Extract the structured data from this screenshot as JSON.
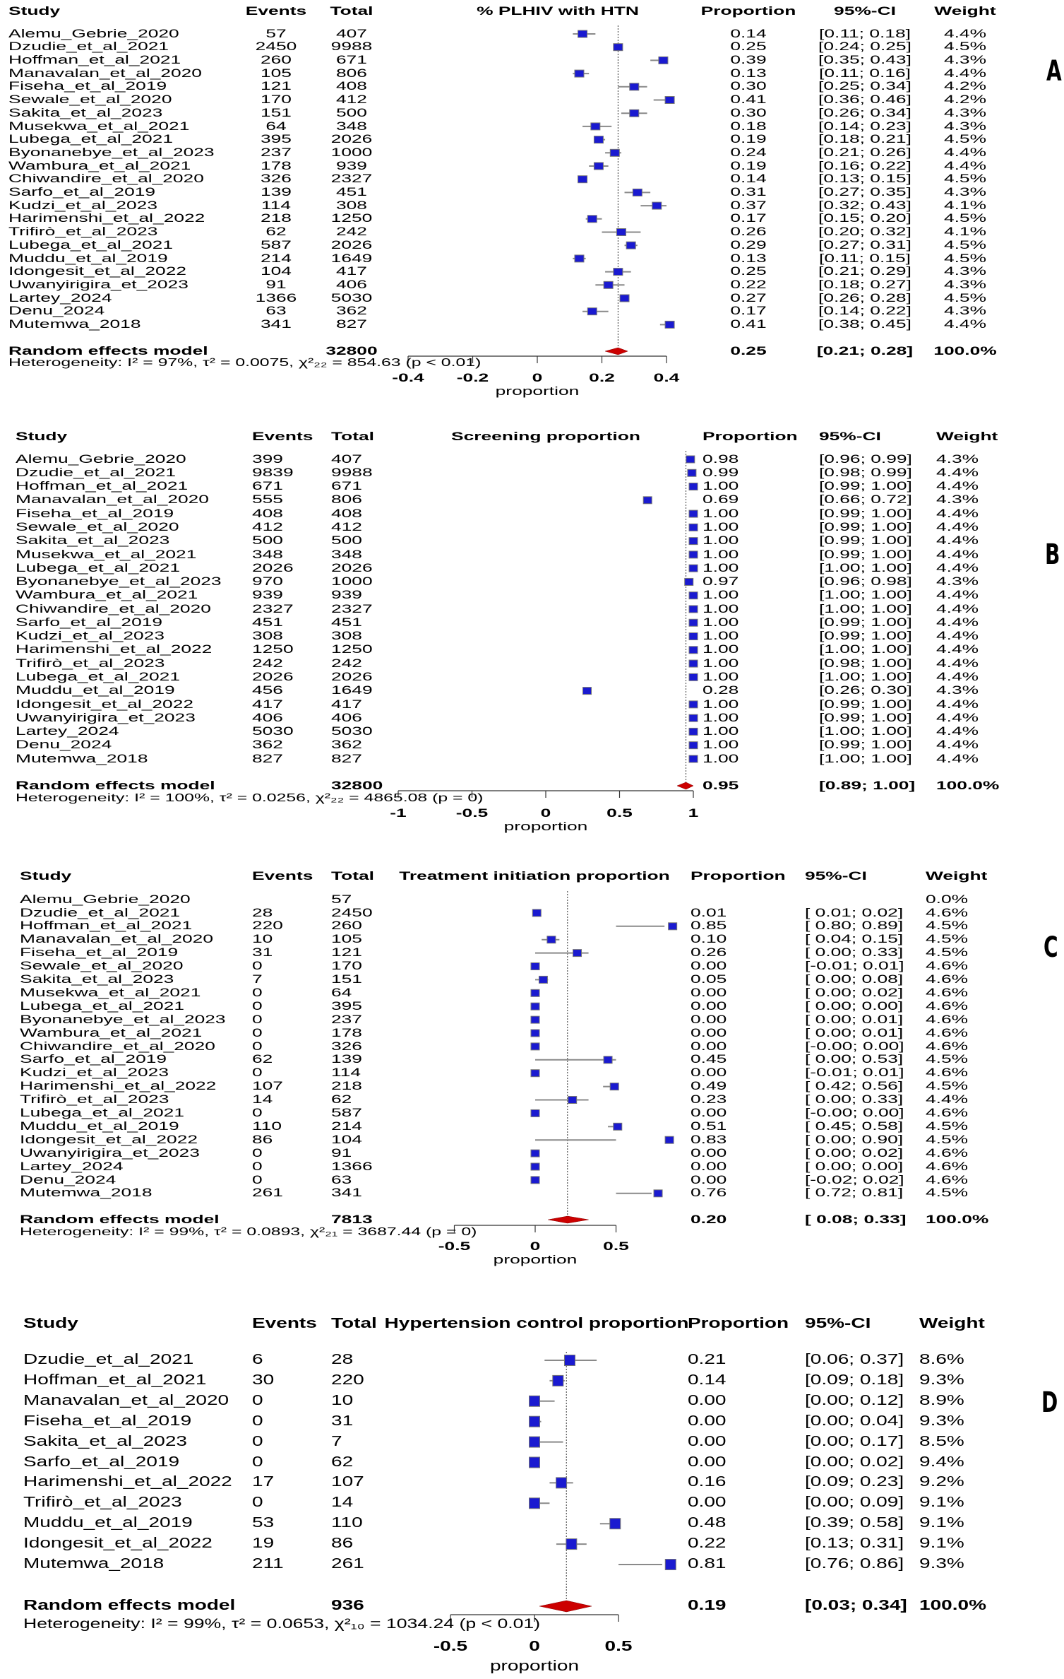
{
  "colors": {
    "square": "#1a1ad0",
    "ci_line": "#8a8a8a",
    "diamond": "#cc0000",
    "reference_line": "#333333"
  },
  "panel_labels": [
    "A",
    "B",
    "C",
    "D"
  ],
  "chart_data": [
    {
      "type": "forest",
      "headers": {
        "study": "Study",
        "events": "Events",
        "total": "Total",
        "plot": "% PLHIV with HTN",
        "proportion": "Proportion",
        "ci": "95%-CI",
        "weight": "Weight"
      },
      "studies": [
        {
          "study": "Alemu_Gebrie_2020",
          "events": "57",
          "total": "407",
          "proportion": "0.14",
          "ci": "[0.11; 0.18]",
          "weight": "4.4%"
        },
        {
          "study": "Dzudie_et_al_2021",
          "events": "2450",
          "total": "9988",
          "proportion": "0.25",
          "ci": "[0.24; 0.25]",
          "weight": "4.5%"
        },
        {
          "study": "Hoffman_et_al_2021",
          "events": "260",
          "total": "671",
          "proportion": "0.39",
          "ci": "[0.35; 0.43]",
          "weight": "4.3%"
        },
        {
          "study": "Manavalan_et_al_2020",
          "events": "105",
          "total": "806",
          "proportion": "0.13",
          "ci": "[0.11; 0.16]",
          "weight": "4.4%"
        },
        {
          "study": "Fiseha_et_al_2019",
          "events": "121",
          "total": "408",
          "proportion": "0.30",
          "ci": "[0.25; 0.34]",
          "weight": "4.2%"
        },
        {
          "study": "Sewale_et_al_2020",
          "events": "170",
          "total": "412",
          "proportion": "0.41",
          "ci": "[0.36; 0.46]",
          "weight": "4.2%"
        },
        {
          "study": "Sakita_et_al_2023",
          "events": "151",
          "total": "500",
          "proportion": "0.30",
          "ci": "[0.26; 0.34]",
          "weight": "4.3%"
        },
        {
          "study": "Musekwa_et_al_2021",
          "events": "64",
          "total": "348",
          "proportion": "0.18",
          "ci": "[0.14; 0.23]",
          "weight": "4.3%"
        },
        {
          "study": "Lubega_et_al_2021",
          "events": "395",
          "total": "2026",
          "proportion": "0.19",
          "ci": "[0.18; 0.21]",
          "weight": "4.5%"
        },
        {
          "study": "Byonanebye_et_al_2023",
          "events": "237",
          "total": "1000",
          "proportion": "0.24",
          "ci": "[0.21; 0.26]",
          "weight": "4.4%"
        },
        {
          "study": "Wambura_et_al_2021",
          "events": "178",
          "total": "939",
          "proportion": "0.19",
          "ci": "[0.16; 0.22]",
          "weight": "4.4%"
        },
        {
          "study": "Chiwandire_et_al_2020",
          "events": "326",
          "total": "2327",
          "proportion": "0.14",
          "ci": "[0.13; 0.15]",
          "weight": "4.5%"
        },
        {
          "study": "Sarfo_et_al_2019",
          "events": "139",
          "total": "451",
          "proportion": "0.31",
          "ci": "[0.27; 0.35]",
          "weight": "4.3%"
        },
        {
          "study": "Kudzi_et_al_2023",
          "events": "114",
          "total": "308",
          "proportion": "0.37",
          "ci": "[0.32; 0.43]",
          "weight": "4.1%"
        },
        {
          "study": "Harimenshi_et_al_2022",
          "events": "218",
          "total": "1250",
          "proportion": "0.17",
          "ci": "[0.15; 0.20]",
          "weight": "4.5%"
        },
        {
          "study": "Trifirò_et_al_2023",
          "events": "62",
          "total": "242",
          "proportion": "0.26",
          "ci": "[0.20; 0.32]",
          "weight": "4.1%"
        },
        {
          "study": "Lubega_et_al_2021",
          "events": "587",
          "total": "2026",
          "proportion": "0.29",
          "ci": "[0.27; 0.31]",
          "weight": "4.5%"
        },
        {
          "study": "Muddu_et_al_2019",
          "events": "214",
          "total": "1649",
          "proportion": "0.13",
          "ci": "[0.11; 0.15]",
          "weight": "4.5%"
        },
        {
          "study": "Idongesit_et_al_2022",
          "events": "104",
          "total": "417",
          "proportion": "0.25",
          "ci": "[0.21; 0.29]",
          "weight": "4.3%"
        },
        {
          "study": "Uwanyirigira_et_2023",
          "events": "91",
          "total": "406",
          "proportion": "0.22",
          "ci": "[0.18; 0.27]",
          "weight": "4.3%"
        },
        {
          "study": "Lartey_2024",
          "events": "1366",
          "total": "5030",
          "proportion": "0.27",
          "ci": "[0.26; 0.28]",
          "weight": "4.5%"
        },
        {
          "study": "Denu_2024",
          "events": "63",
          "total": "362",
          "proportion": "0.17",
          "ci": "[0.14; 0.22]",
          "weight": "4.3%"
        },
        {
          "study": "Mutemwa_2018",
          "events": "341",
          "total": "827",
          "proportion": "0.41",
          "ci": "[0.38; 0.45]",
          "weight": "4.4%"
        }
      ],
      "pooled": {
        "label": "Random effects model",
        "total": "32800",
        "proportion": "0.25",
        "ci": "[0.21; 0.28]",
        "weight": "100.0%"
      },
      "heterogeneity": "Heterogeneity: I² = 97%, τ² = 0.0075, χ²₂₂ = 854.63 (p < 0.01)",
      "xlabel": "proportion",
      "xticks": [
        "-0.4",
        "-0.2",
        "0",
        "0.2",
        "0.4"
      ],
      "xlim": [
        -0.4,
        0.4
      ],
      "reference_line": 0.25
    },
    {
      "type": "forest",
      "headers": {
        "study": "Study",
        "events": "Events",
        "total": "Total",
        "plot": "Screening proportion",
        "proportion": "Proportion",
        "ci": "95%-CI",
        "weight": "Weight"
      },
      "studies": [
        {
          "study": "Alemu_Gebrie_2020",
          "events": "399",
          "total": "407",
          "proportion": "0.98",
          "ci": "[0.96; 0.99]",
          "weight": "4.3%"
        },
        {
          "study": "Dzudie_et_al_2021",
          "events": "9839",
          "total": "9988",
          "proportion": "0.99",
          "ci": "[0.98; 0.99]",
          "weight": "4.4%"
        },
        {
          "study": "Hoffman_et_al_2021",
          "events": "671",
          "total": "671",
          "proportion": "1.00",
          "ci": "[0.99; 1.00]",
          "weight": "4.4%"
        },
        {
          "study": "Manavalan_et_al_2020",
          "events": "555",
          "total": "806",
          "proportion": "0.69",
          "ci": "[0.66; 0.72]",
          "weight": "4.3%"
        },
        {
          "study": "Fiseha_et_al_2019",
          "events": "408",
          "total": "408",
          "proportion": "1.00",
          "ci": "[0.99; 1.00]",
          "weight": "4.4%"
        },
        {
          "study": "Sewale_et_al_2020",
          "events": "412",
          "total": "412",
          "proportion": "1.00",
          "ci": "[0.99; 1.00]",
          "weight": "4.4%"
        },
        {
          "study": "Sakita_et_al_2023",
          "events": "500",
          "total": "500",
          "proportion": "1.00",
          "ci": "[0.99; 1.00]",
          "weight": "4.4%"
        },
        {
          "study": "Musekwa_et_al_2021",
          "events": "348",
          "total": "348",
          "proportion": "1.00",
          "ci": "[0.99; 1.00]",
          "weight": "4.4%"
        },
        {
          "study": "Lubega_et_al_2021",
          "events": "2026",
          "total": "2026",
          "proportion": "1.00",
          "ci": "[1.00; 1.00]",
          "weight": "4.4%"
        },
        {
          "study": "Byonanebye_et_al_2023",
          "events": "970",
          "total": "1000",
          "proportion": "0.97",
          "ci": "[0.96; 0.98]",
          "weight": "4.3%"
        },
        {
          "study": "Wambura_et_al_2021",
          "events": "939",
          "total": "939",
          "proportion": "1.00",
          "ci": "[1.00; 1.00]",
          "weight": "4.4%"
        },
        {
          "study": "Chiwandire_et_al_2020",
          "events": "2327",
          "total": "2327",
          "proportion": "1.00",
          "ci": "[1.00; 1.00]",
          "weight": "4.4%"
        },
        {
          "study": "Sarfo_et_al_2019",
          "events": "451",
          "total": "451",
          "proportion": "1.00",
          "ci": "[0.99; 1.00]",
          "weight": "4.4%"
        },
        {
          "study": "Kudzi_et_al_2023",
          "events": "308",
          "total": "308",
          "proportion": "1.00",
          "ci": "[0.99; 1.00]",
          "weight": "4.4%"
        },
        {
          "study": "Harimenshi_et_al_2022",
          "events": "1250",
          "total": "1250",
          "proportion": "1.00",
          "ci": "[1.00; 1.00]",
          "weight": "4.4%"
        },
        {
          "study": "Trifirò_et_al_2023",
          "events": "242",
          "total": "242",
          "proportion": "1.00",
          "ci": "[0.98; 1.00]",
          "weight": "4.4%"
        },
        {
          "study": "Lubega_et_al_2021",
          "events": "2026",
          "total": "2026",
          "proportion": "1.00",
          "ci": "[1.00; 1.00]",
          "weight": "4.4%"
        },
        {
          "study": "Muddu_et_al_2019",
          "events": "456",
          "total": "1649",
          "proportion": "0.28",
          "ci": "[0.26; 0.30]",
          "weight": "4.3%"
        },
        {
          "study": "Idongesit_et_al_2022",
          "events": "417",
          "total": "417",
          "proportion": "1.00",
          "ci": "[0.99; 1.00]",
          "weight": "4.4%"
        },
        {
          "study": "Uwanyirigira_et_2023",
          "events": "406",
          "total": "406",
          "proportion": "1.00",
          "ci": "[0.99; 1.00]",
          "weight": "4.4%"
        },
        {
          "study": "Lartey_2024",
          "events": "5030",
          "total": "5030",
          "proportion": "1.00",
          "ci": "[1.00; 1.00]",
          "weight": "4.4%"
        },
        {
          "study": "Denu_2024",
          "events": "362",
          "total": "362",
          "proportion": "1.00",
          "ci": "[0.99; 1.00]",
          "weight": "4.4%"
        },
        {
          "study": "Mutemwa_2018",
          "events": "827",
          "total": "827",
          "proportion": "1.00",
          "ci": "[1.00; 1.00]",
          "weight": "4.4%"
        }
      ],
      "pooled": {
        "label": "Random effects model",
        "total": "32800",
        "proportion": "0.95",
        "ci": "[0.89; 1.00]",
        "weight": "100.0%"
      },
      "heterogeneity": "Heterogeneity: I² = 100%, τ² = 0.0256, χ²₂₂ = 4865.08 (p = 0)",
      "xlabel": "proportion",
      "xticks": [
        "-1",
        "-0.5",
        "0",
        "0.5",
        "1"
      ],
      "xlim": [
        -1,
        1
      ],
      "reference_line": 0.95
    },
    {
      "type": "forest",
      "headers": {
        "study": "Study",
        "events": "Events",
        "total": "Total",
        "plot": "Treatment initiation proportion",
        "proportion": "Proportion",
        "ci": "95%-CI",
        "weight": "Weight"
      },
      "studies": [
        {
          "study": "Alemu_Gebrie_2020",
          "events": "",
          "total": "57",
          "proportion": "",
          "ci": "",
          "weight": "0.0%"
        },
        {
          "study": "Dzudie_et_al_2021",
          "events": "28",
          "total": "2450",
          "proportion": "0.01",
          "ci": "[ 0.01; 0.02]",
          "weight": "4.6%"
        },
        {
          "study": "Hoffman_et_al_2021",
          "events": "220",
          "total": "260",
          "proportion": "0.85",
          "ci": "[ 0.80; 0.89]",
          "weight": "4.5%"
        },
        {
          "study": "Manavalan_et_al_2020",
          "events": "10",
          "total": "105",
          "proportion": "0.10",
          "ci": "[ 0.04; 0.15]",
          "weight": "4.5%"
        },
        {
          "study": "Fiseha_et_al_2019",
          "events": "31",
          "total": "121",
          "proportion": "0.26",
          "ci": "[ 0.00; 0.33]",
          "weight": "4.5%"
        },
        {
          "study": "Sewale_et_al_2020",
          "events": "0",
          "total": "170",
          "proportion": "0.00",
          "ci": "[-0.01; 0.01]",
          "weight": "4.6%"
        },
        {
          "study": "Sakita_et_al_2023",
          "events": "7",
          "total": "151",
          "proportion": "0.05",
          "ci": "[ 0.00; 0.08]",
          "weight": "4.6%"
        },
        {
          "study": "Musekwa_et_al_2021",
          "events": "0",
          "total": "64",
          "proportion": "0.00",
          "ci": "[ 0.00; 0.02]",
          "weight": "4.6%"
        },
        {
          "study": "Lubega_et_al_2021",
          "events": "0",
          "total": "395",
          "proportion": "0.00",
          "ci": "[ 0.00; 0.00]",
          "weight": "4.6%"
        },
        {
          "study": "Byonanebye_et_al_2023",
          "events": "0",
          "total": "237",
          "proportion": "0.00",
          "ci": "[ 0.00; 0.01]",
          "weight": "4.6%"
        },
        {
          "study": "Wambura_et_al_2021",
          "events": "0",
          "total": "178",
          "proportion": "0.00",
          "ci": "[ 0.00; 0.01]",
          "weight": "4.6%"
        },
        {
          "study": "Chiwandire_et_al_2020",
          "events": "0",
          "total": "326",
          "proportion": "0.00",
          "ci": "[-0.00; 0.00]",
          "weight": "4.6%"
        },
        {
          "study": "Sarfo_et_al_2019",
          "events": "62",
          "total": "139",
          "proportion": "0.45",
          "ci": "[ 0.00; 0.53]",
          "weight": "4.5%"
        },
        {
          "study": "Kudzi_et_al_2023",
          "events": "0",
          "total": "114",
          "proportion": "0.00",
          "ci": "[-0.01; 0.01]",
          "weight": "4.6%"
        },
        {
          "study": "Harimenshi_et_al_2022",
          "events": "107",
          "total": "218",
          "proportion": "0.49",
          "ci": "[ 0.42; 0.56]",
          "weight": "4.5%"
        },
        {
          "study": "Trifirò_et_al_2023",
          "events": "14",
          "total": "62",
          "proportion": "0.23",
          "ci": "[ 0.00; 0.33]",
          "weight": "4.4%"
        },
        {
          "study": "Lubega_et_al_2021",
          "events": "0",
          "total": "587",
          "proportion": "0.00",
          "ci": "[-0.00; 0.00]",
          "weight": "4.6%"
        },
        {
          "study": "Muddu_et_al_2019",
          "events": "110",
          "total": "214",
          "proportion": "0.51",
          "ci": "[ 0.45; 0.58]",
          "weight": "4.5%"
        },
        {
          "study": "Idongesit_et_al_2022",
          "events": "86",
          "total": "104",
          "proportion": "0.83",
          "ci": "[ 0.00; 0.90]",
          "weight": "4.5%"
        },
        {
          "study": "Uwanyirigira_et_2023",
          "events": "0",
          "total": "91",
          "proportion": "0.00",
          "ci": "[ 0.00; 0.02]",
          "weight": "4.6%"
        },
        {
          "study": "Lartey_2024",
          "events": "0",
          "total": "1366",
          "proportion": "0.00",
          "ci": "[ 0.00; 0.00]",
          "weight": "4.6%"
        },
        {
          "study": "Denu_2024",
          "events": "0",
          "total": "63",
          "proportion": "0.00",
          "ci": "[-0.02; 0.02]",
          "weight": "4.6%"
        },
        {
          "study": "Mutemwa_2018",
          "events": "261",
          "total": "341",
          "proportion": "0.76",
          "ci": "[ 0.72; 0.81]",
          "weight": "4.5%"
        }
      ],
      "pooled": {
        "label": "Random effects model",
        "total": "7813",
        "proportion": "0.20",
        "ci": "[ 0.08; 0.33]",
        "weight": "100.0%"
      },
      "heterogeneity": "Heterogeneity: I² = 99%, τ² = 0.0893, χ²₂₁ = 3687.44 (p = 0)",
      "xlabel": "proportion",
      "xticks": [
        "-0.5",
        "0",
        "0.5"
      ],
      "xlim": [
        -0.5,
        0.5
      ],
      "reference_line": 0.2
    },
    {
      "type": "forest",
      "headers": {
        "study": "Study",
        "events": "Events",
        "total": "Total",
        "plot": "Hypertension control proportion",
        "proportion": "Proportion",
        "ci": "95%-CI",
        "weight": "Weight"
      },
      "studies": [
        {
          "study": "Dzudie_et_al_2021",
          "events": "6",
          "total": "28",
          "proportion": "0.21",
          "ci": "[0.06; 0.37]",
          "weight": "8.6%"
        },
        {
          "study": "Hoffman_et_al_2021",
          "events": "30",
          "total": "220",
          "proportion": "0.14",
          "ci": "[0.09; 0.18]",
          "weight": "9.3%"
        },
        {
          "study": "Manavalan_et_al_2020",
          "events": "0",
          "total": "10",
          "proportion": "0.00",
          "ci": "[0.00; 0.12]",
          "weight": "8.9%"
        },
        {
          "study": "Fiseha_et_al_2019",
          "events": "0",
          "total": "31",
          "proportion": "0.00",
          "ci": "[0.00; 0.04]",
          "weight": "9.3%"
        },
        {
          "study": "Sakita_et_al_2023",
          "events": "0",
          "total": "7",
          "proportion": "0.00",
          "ci": "[0.00; 0.17]",
          "weight": "8.5%"
        },
        {
          "study": "Sarfo_et_al_2019",
          "events": "0",
          "total": "62",
          "proportion": "0.00",
          "ci": "[0.00; 0.02]",
          "weight": "9.4%"
        },
        {
          "study": "Harimenshi_et_al_2022",
          "events": "17",
          "total": "107",
          "proportion": "0.16",
          "ci": "[0.09; 0.23]",
          "weight": "9.2%"
        },
        {
          "study": "Trifirò_et_al_2023",
          "events": "0",
          "total": "14",
          "proportion": "0.00",
          "ci": "[0.00; 0.09]",
          "weight": "9.1%"
        },
        {
          "study": "Muddu_et_al_2019",
          "events": "53",
          "total": "110",
          "proportion": "0.48",
          "ci": "[0.39; 0.58]",
          "weight": "9.1%"
        },
        {
          "study": "Idongesit_et_al_2022",
          "events": "19",
          "total": "86",
          "proportion": "0.22",
          "ci": "[0.13; 0.31]",
          "weight": "9.1%"
        },
        {
          "study": "Mutemwa_2018",
          "events": "211",
          "total": "261",
          "proportion": "0.81",
          "ci": "[0.76; 0.86]",
          "weight": "9.3%"
        }
      ],
      "pooled": {
        "label": "Random effects model",
        "total": "936",
        "proportion": "0.19",
        "ci": "[0.03; 0.34]",
        "weight": "100.0%"
      },
      "heterogeneity": "Heterogeneity: I² = 99%, τ² = 0.0653, χ²₁₀ = 1034.24 (p < 0.01)",
      "xlabel": "proportion",
      "xticks": [
        "-0.5",
        "0",
        "0.5"
      ],
      "xlim": [
        -0.5,
        0.5
      ],
      "reference_line": 0.19
    }
  ]
}
